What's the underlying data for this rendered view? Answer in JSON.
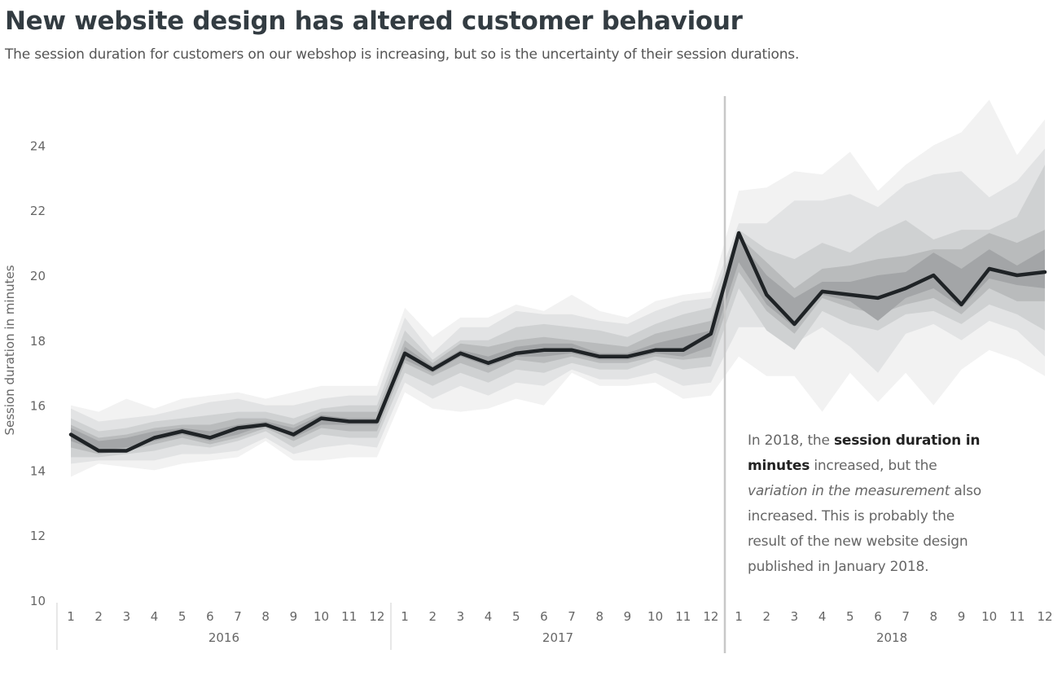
{
  "title": "New website design has altered customer behaviour",
  "subtitle": "The session duration for customers on our webshop is increasing, but so is the uncertainty of their session durations.",
  "annotation": {
    "part1": "In 2018, the ",
    "bold": "session duration in minutes",
    "part2": " increased, but the ",
    "italic": "variation in the measurement",
    "part3": " also increased. This is probably the result of the new website design published in January 2018."
  },
  "colors": {
    "line": "#1f2326",
    "band_outer": "#f2f2f2",
    "band_2": "#e2e3e4",
    "band_3": "#cfd1d2",
    "band_4": "#b9bbbc",
    "band_inner": "#a3a5a7",
    "divider": "#c8c8c8",
    "text": "#666666"
  },
  "chart_data": {
    "type": "line",
    "title": "New website design has altered customer behaviour",
    "ylabel": "Session duration in minutes",
    "ylim": [
      10,
      25
    ],
    "yticks": [
      10,
      12,
      14,
      16,
      18,
      20,
      22,
      24
    ],
    "years": [
      "2016",
      "2017",
      "2018"
    ],
    "months": [
      "1",
      "2",
      "3",
      "4",
      "5",
      "6",
      "7",
      "8",
      "9",
      "10",
      "11",
      "12"
    ],
    "reference_line": {
      "year": "2018",
      "month": 1,
      "label": ""
    },
    "series": [
      {
        "values": [
          15.1,
          14.6,
          14.6,
          15.0,
          15.2,
          15.0,
          15.3,
          15.4,
          15.1,
          15.6,
          15.5,
          15.5,
          17.6,
          17.1,
          17.6,
          17.3,
          17.6,
          17.7,
          17.7,
          17.5,
          17.5,
          17.7,
          17.7,
          18.2,
          21.3,
          19.4,
          18.5,
          19.5,
          19.4,
          19.3,
          19.6,
          20.0,
          19.1,
          20.2,
          20.0,
          20.1
        ]
      }
    ],
    "uncertainty_bands": {
      "lower_95": [
        13.8,
        14.2,
        14.1,
        14.0,
        14.2,
        14.3,
        14.4,
        14.9,
        14.3,
        14.3,
        14.4,
        14.4,
        16.4,
        15.9,
        15.8,
        15.9,
        16.2,
        16.0,
        17.0,
        16.6,
        16.6,
        16.7,
        16.2,
        16.3,
        17.5,
        16.9,
        16.9,
        15.8,
        17.0,
        16.1,
        17.0,
        16.0,
        17.1,
        17.7,
        17.4,
        16.9
      ],
      "upper_95": [
        16.0,
        15.8,
        16.2,
        15.9,
        16.2,
        16.3,
        16.4,
        16.2,
        16.4,
        16.6,
        16.6,
        16.6,
        19.0,
        18.1,
        18.7,
        18.7,
        19.1,
        18.9,
        19.4,
        18.9,
        18.7,
        19.2,
        19.4,
        19.5,
        22.6,
        22.7,
        23.2,
        23.1,
        23.8,
        22.6,
        23.4,
        24.0,
        24.4,
        25.4,
        23.7,
        24.8
      ],
      "lower_80": [
        14.2,
        14.3,
        14.3,
        14.3,
        14.5,
        14.5,
        14.6,
        15.0,
        14.5,
        14.7,
        14.8,
        14.7,
        16.7,
        16.2,
        16.6,
        16.3,
        16.7,
        16.6,
        17.1,
        16.8,
        16.8,
        17.0,
        16.6,
        16.7,
        18.4,
        18.4,
        17.9,
        18.4,
        17.8,
        17.0,
        18.2,
        18.5,
        18.0,
        18.6,
        18.3,
        17.5
      ],
      "upper_80": [
        15.9,
        15.5,
        15.6,
        15.7,
        15.9,
        16.1,
        16.2,
        16.0,
        16.0,
        16.2,
        16.3,
        16.3,
        18.7,
        17.6,
        18.4,
        18.4,
        18.9,
        18.8,
        18.8,
        18.6,
        18.5,
        18.9,
        19.2,
        19.3,
        21.6,
        21.6,
        22.3,
        22.3,
        22.5,
        22.1,
        22.8,
        23.1,
        23.2,
        22.4,
        22.9,
        23.9
      ],
      "lower_50": [
        14.4,
        14.4,
        14.5,
        14.6,
        14.8,
        14.7,
        14.9,
        15.2,
        14.7,
        15.1,
        15.0,
        15.0,
        17.0,
        16.6,
        17.0,
        16.7,
        17.1,
        17.0,
        17.3,
        17.1,
        17.1,
        17.4,
        17.1,
        17.2,
        19.6,
        18.3,
        17.7,
        18.9,
        18.5,
        18.3,
        18.8,
        18.9,
        18.5,
        19.1,
        18.8,
        18.3
      ],
      "upper_50": [
        15.6,
        15.2,
        15.3,
        15.5,
        15.6,
        15.7,
        15.8,
        15.8,
        15.6,
        15.9,
        16.0,
        16.0,
        18.3,
        17.4,
        18.0,
        18.0,
        18.4,
        18.5,
        18.4,
        18.3,
        18.1,
        18.5,
        18.8,
        19.0,
        21.4,
        20.8,
        20.5,
        21.0,
        20.7,
        21.3,
        21.7,
        21.1,
        21.4,
        21.4,
        21.8,
        23.4
      ],
      "lower_25": [
        14.7,
        14.5,
        14.6,
        14.8,
        15.0,
        14.8,
        15.0,
        15.3,
        14.9,
        15.3,
        15.2,
        15.2,
        17.3,
        16.9,
        17.3,
        17.0,
        17.4,
        17.3,
        17.5,
        17.3,
        17.3,
        17.5,
        17.4,
        17.5,
        20.1,
        18.9,
        18.2,
        19.3,
        19.0,
        18.8,
        19.1,
        19.3,
        18.8,
        19.6,
        19.2,
        19.2
      ],
      "upper_25": [
        15.4,
        15.0,
        15.1,
        15.3,
        15.4,
        15.4,
        15.6,
        15.6,
        15.4,
        15.8,
        15.8,
        15.8,
        18.0,
        17.3,
        17.9,
        17.8,
        18.0,
        18.1,
        18.0,
        17.9,
        17.8,
        18.2,
        18.4,
        18.6,
        21.2,
        20.4,
        19.6,
        20.2,
        20.3,
        20.5,
        20.6,
        20.8,
        20.8,
        21.3,
        21.0,
        21.4
      ],
      "lower_10": [
        14.9,
        14.6,
        14.7,
        14.9,
        15.1,
        14.9,
        15.1,
        15.4,
        15.0,
        15.4,
        15.4,
        15.4,
        17.4,
        17.0,
        17.5,
        17.2,
        17.5,
        17.5,
        17.6,
        17.4,
        17.4,
        17.6,
        17.5,
        17.8,
        20.4,
        19.1,
        18.4,
        19.4,
        19.2,
        18.6,
        19.3,
        19.6,
        19.0,
        19.9,
        19.7,
        19.6
      ],
      "upper_10": [
        15.3,
        14.9,
        15.0,
        15.2,
        15.3,
        15.2,
        15.4,
        15.5,
        15.3,
        15.7,
        15.6,
        15.6,
        17.8,
        17.2,
        17.7,
        17.5,
        17.8,
        17.9,
        17.9,
        17.6,
        17.6,
        17.9,
        18.1,
        18.3,
        21.1,
        20.0,
        19.3,
        19.8,
        19.8,
        20.0,
        20.1,
        20.7,
        20.2,
        20.8,
        20.3,
        20.8
      ]
    }
  }
}
